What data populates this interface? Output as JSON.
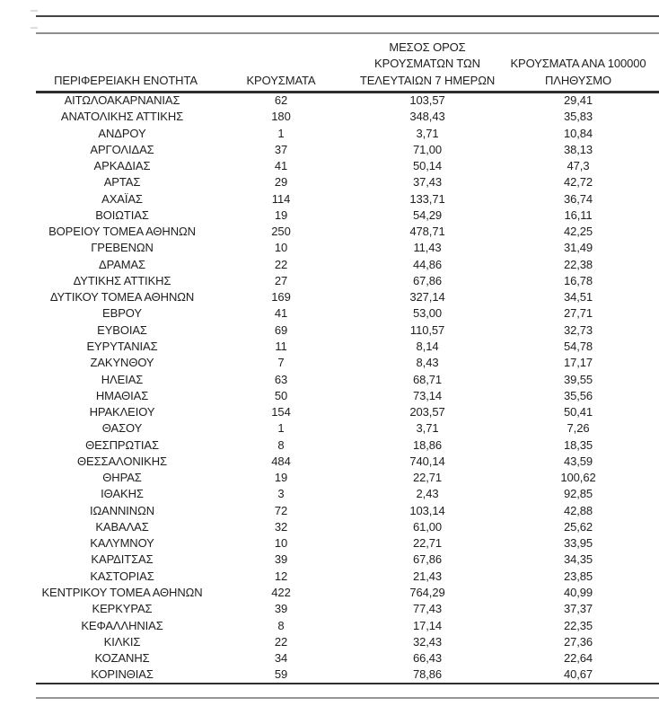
{
  "table": {
    "header": {
      "col1": "ΠΕΡΙΦΕΡΕΙΑΚΗ ΕΝΟΤΗΤΑ",
      "col2": "ΚΡΟΥΣΜΑΤΑ",
      "col3_lines": [
        "ΜΕΣΟΣ ΟΡΟΣ",
        "ΚΡΟΥΣΜΑΤΩΝ ΤΩΝ",
        "ΤΕΛΕΥΤΑΙΩΝ 7 ΗΜΕΡΩΝ"
      ],
      "col4_lines": [
        "ΚΡΟΥΣΜΑΤΑ ΑΝΑ 100000",
        "ΠΛΗΘΥΣΜΟ"
      ]
    },
    "columns": [
      "ΠΕΡΙΦΕΡΕΙΑΚΗ ΕΝΟΤΗΤΑ",
      "ΚΡΟΥΣΜΑΤΑ",
      "ΜΕΣΟΣ ΟΡΟΣ ΚΡΟΥΣΜΑΤΩΝ ΤΩΝ ΤΕΛΕΥΤΑΙΩΝ 7 ΗΜΕΡΩΝ",
      "ΚΡΟΥΣΜΑΤΑ ΑΝΑ 100000 ΠΛΗΘΥΣΜΟ"
    ],
    "rows": [
      [
        "ΑΙΤΩΛΟΑΚΑΡΝΑΝΙΑΣ",
        "62",
        "103,57",
        "29,41"
      ],
      [
        "ΑΝΑΤΟΛΙΚΗΣ ΑΤΤΙΚΗΣ",
        "180",
        "348,43",
        "35,83"
      ],
      [
        "ΑΝΔΡΟΥ",
        "1",
        "3,71",
        "10,84"
      ],
      [
        "ΑΡΓΟΛΙΔΑΣ",
        "37",
        "71,00",
        "38,13"
      ],
      [
        "ΑΡΚΑΔΙΑΣ",
        "41",
        "50,14",
        "47,3"
      ],
      [
        "ΑΡΤΑΣ",
        "29",
        "37,43",
        "42,72"
      ],
      [
        "ΑΧΑΪΑΣ",
        "114",
        "133,71",
        "36,74"
      ],
      [
        "ΒΟΙΩΤΙΑΣ",
        "19",
        "54,29",
        "16,11"
      ],
      [
        "ΒΟΡΕΙΟΥ ΤΟΜΕΑ ΑΘΗΝΩΝ",
        "250",
        "478,71",
        "42,25"
      ],
      [
        "ΓΡΕΒΕΝΩΝ",
        "10",
        "11,43",
        "31,49"
      ],
      [
        "ΔΡΑΜΑΣ",
        "22",
        "44,86",
        "22,38"
      ],
      [
        "ΔΥΤΙΚΗΣ ΑΤΤΙΚΗΣ",
        "27",
        "67,86",
        "16,78"
      ],
      [
        "ΔΥΤΙΚΟΥ ΤΟΜΕΑ ΑΘΗΝΩΝ",
        "169",
        "327,14",
        "34,51"
      ],
      [
        "ΕΒΡΟΥ",
        "41",
        "53,00",
        "27,71"
      ],
      [
        "ΕΥΒΟΙΑΣ",
        "69",
        "110,57",
        "32,73"
      ],
      [
        "ΕΥΡΥΤΑΝΙΑΣ",
        "11",
        "8,14",
        "54,78"
      ],
      [
        "ΖΑΚΥΝΘΟΥ",
        "7",
        "8,43",
        "17,17"
      ],
      [
        "ΗΛΕΙΑΣ",
        "63",
        "68,71",
        "39,55"
      ],
      [
        "ΗΜΑΘΙΑΣ",
        "50",
        "73,14",
        "35,56"
      ],
      [
        "ΗΡΑΚΛΕΙΟΥ",
        "154",
        "203,57",
        "50,41"
      ],
      [
        "ΘΑΣΟΥ",
        "1",
        "3,71",
        "7,26"
      ],
      [
        "ΘΕΣΠΡΩΤΙΑΣ",
        "8",
        "18,86",
        "18,35"
      ],
      [
        "ΘΕΣΣΑΛΟΝΙΚΗΣ",
        "484",
        "740,14",
        "43,59"
      ],
      [
        "ΘΗΡΑΣ",
        "19",
        "22,71",
        "100,62"
      ],
      [
        "ΙΘΑΚΗΣ",
        "3",
        "2,43",
        "92,85"
      ],
      [
        "ΙΩΑΝΝΙΝΩΝ",
        "72",
        "103,14",
        "42,88"
      ],
      [
        "ΚΑΒΑΛΑΣ",
        "32",
        "61,00",
        "25,62"
      ],
      [
        "ΚΑΛΥΜΝΟΥ",
        "10",
        "22,71",
        "33,95"
      ],
      [
        "ΚΑΡΔΙΤΣΑΣ",
        "39",
        "67,86",
        "34,35"
      ],
      [
        "ΚΑΣΤΟΡΙΑΣ",
        "12",
        "21,43",
        "23,85"
      ],
      [
        "ΚΕΝΤΡΙΚΟΥ ΤΟΜΕΑ ΑΘΗΝΩΝ",
        "422",
        "764,29",
        "40,99"
      ],
      [
        "ΚΕΡΚΥΡΑΣ",
        "39",
        "77,43",
        "37,37"
      ],
      [
        "ΚΕΦΑΛΛΗΝΙΑΣ",
        "8",
        "17,14",
        "22,35"
      ],
      [
        "ΚΙΛΚΙΣ",
        "22",
        "32,43",
        "27,36"
      ],
      [
        "ΚΟΖΑΝΗΣ",
        "34",
        "66,43",
        "22,64"
      ],
      [
        "ΚΟΡΙΝΘΙΑΣ",
        "59",
        "78,86",
        "40,67"
      ]
    ]
  },
  "colors": {
    "text": "#1e1e1e",
    "rule_dark": "#2e2e2e",
    "rule_gray": "#8d8d8d",
    "background": "#ffffff"
  }
}
